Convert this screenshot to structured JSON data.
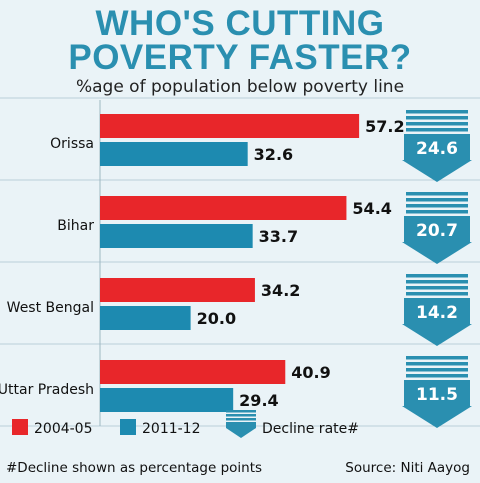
{
  "title_line1": "WHO'S CUTTING",
  "title_line2": "POVERTY FASTER?",
  "subtitle": "%age of population below poverty line",
  "footnote": "#Decline shown as percentage points",
  "source": "Source: Niti Aayog",
  "colors": {
    "series_2004": "#e8262a",
    "series_2011": "#1d8ab0",
    "arrow": "#2a8fb0",
    "background": "#eaf3f7"
  },
  "chart_data": {
    "type": "bar",
    "orientation": "horizontal",
    "categories": [
      "Orissa",
      "Bihar",
      "West Bengal",
      "Uttar Pradesh"
    ],
    "series": [
      {
        "name": "2004-05",
        "values": [
          57.2,
          54.4,
          34.2,
          40.9
        ]
      },
      {
        "name": "2011-12",
        "values": [
          32.6,
          33.7,
          20.0,
          29.4
        ]
      }
    ],
    "value_labels": [
      [
        "57.2",
        "54.4",
        "34.2",
        "40.9"
      ],
      [
        "32.6",
        "33.7",
        "20.0",
        "29.4"
      ]
    ],
    "decline": {
      "name": "Decline rate#",
      "values": [
        24.6,
        20.7,
        14.2,
        11.5
      ],
      "labels": [
        "24.6",
        "20.7",
        "14.2",
        "11.5"
      ]
    },
    "xlim": [
      0,
      65
    ],
    "legend": [
      "2004-05",
      "2011-12",
      "Decline rate#"
    ],
    "legend_position": "bottom"
  }
}
